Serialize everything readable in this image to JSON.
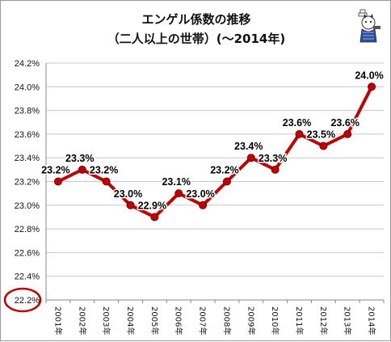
{
  "chart_data": {
    "type": "line",
    "title_line1": "エンゲル係数の推移",
    "title_line2": "（二人以上の世帯）(～2014年)",
    "categories": [
      "2001年",
      "2002年",
      "2003年",
      "2004年",
      "2005年",
      "2006年",
      "2007年",
      "2008年",
      "2009年",
      "2010年",
      "2011年",
      "2012年",
      "2013年",
      "2014年"
    ],
    "values": [
      23.2,
      23.3,
      23.2,
      23.0,
      22.9,
      23.1,
      23.0,
      23.2,
      23.4,
      23.3,
      23.6,
      23.5,
      23.6,
      24.0
    ],
    "data_labels": [
      "23.2%",
      "23.3%",
      "23.2%",
      "23.0%",
      "22.9%",
      "23.1%",
      "23.0%",
      "23.2%",
      "23.4%",
      "23.3%",
      "23.6%",
      "23.5%",
      "23.6%",
      "24.0%"
    ],
    "y_ticks": [
      "22.2%",
      "22.4%",
      "22.6%",
      "22.8%",
      "23.0%",
      "23.2%",
      "23.4%",
      "23.6%",
      "23.8%",
      "24.0%",
      "24.2%"
    ],
    "ylim": [
      22.2,
      24.2
    ],
    "y_step": 0.2,
    "grid": true,
    "y_origin_highlighted": true,
    "colors": {
      "line": "#c00000",
      "marker": "#c00000",
      "grid": "#c8c8c8",
      "highlight": "#c00000"
    }
  },
  "mascot": {
    "icon": "reporter-cat-icon"
  }
}
